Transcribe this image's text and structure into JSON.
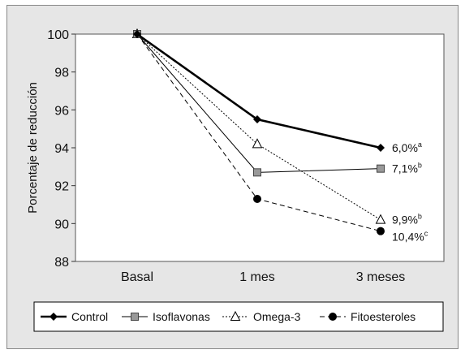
{
  "chart_data": {
    "type": "line",
    "title": "",
    "xlabel": "",
    "ylabel": "Porcentaje  de reducción",
    "categories": [
      "Basal",
      "1 mes",
      "3 meses"
    ],
    "ylim": [
      88,
      100
    ],
    "yticks": [
      88,
      90,
      92,
      94,
      96,
      98,
      100
    ],
    "grid": false,
    "legend_position": "bottom",
    "series": [
      {
        "name": "Control",
        "values": [
          100,
          95.5,
          94.0
        ],
        "marker": "diamond",
        "line": "solid-bold",
        "end_label": "6,0%",
        "end_sup": "a"
      },
      {
        "name": "Isoflavonas",
        "values": [
          100,
          92.7,
          92.9
        ],
        "marker": "square",
        "line": "solid-thin",
        "end_label": "7,1%",
        "end_sup": "b"
      },
      {
        "name": "Omega-3",
        "values": [
          100,
          94.2,
          90.2
        ],
        "marker": "triangle",
        "line": "dotted",
        "end_label": "9,9%",
        "end_sup": "b"
      },
      {
        "name": "Fitoesteroles",
        "values": [
          100,
          91.3,
          89.6
        ],
        "marker": "circle",
        "line": "dashed",
        "end_label": "10,4%",
        "end_sup": "c"
      }
    ],
    "colors": {
      "line": "#000000",
      "square_fill": "#999999",
      "plot_bg": "#ffffff",
      "frame_bg": "#e6e6e6"
    }
  }
}
